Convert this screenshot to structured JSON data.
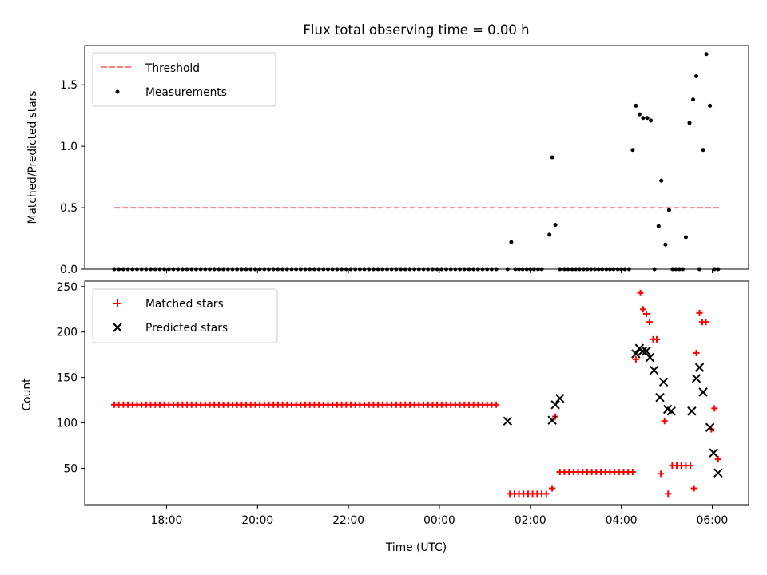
{
  "colors": {
    "threshold": "#ff7f7f",
    "measurement": "#000000",
    "matched": "#ff0000",
    "predicted": "#000000"
  },
  "chart_data": [
    {
      "type": "scatter",
      "title": "Flux total observing time = 0.00 h",
      "xlabel": "",
      "ylabel": "Matched/Predicted stars",
      "xlim": [
        16.2,
        30.8
      ],
      "ylim": [
        0,
        1.82
      ],
      "xticks": [
        18,
        20,
        22,
        24,
        26,
        28,
        30
      ],
      "xtick_labels": [],
      "yticks": [
        0,
        0.5,
        1.0,
        1.5
      ],
      "ytick_labels": [
        "0.0",
        "0.5",
        "1.0",
        "1.5"
      ],
      "legend_position": "upper-left",
      "series": [
        {
          "name": "Threshold",
          "kind": "dashed-line",
          "x": [
            16.85,
            30.15
          ],
          "y": [
            0.5,
            0.5
          ]
        },
        {
          "name": "Measurements",
          "kind": "dot",
          "zero_run": {
            "start": 16.85,
            "end": 25.27,
            "step": 0.1,
            "y": 0
          },
          "x": [
            25.5,
            25.58,
            25.67,
            25.75,
            25.83,
            25.92,
            26.0,
            26.08,
            26.17,
            26.25,
            26.42,
            26.48,
            26.55,
            26.65,
            26.75,
            26.83,
            26.92,
            27.0,
            27.08,
            27.17,
            27.25,
            27.33,
            27.42,
            27.5,
            27.58,
            27.67,
            27.75,
            27.83,
            27.92,
            28.0,
            28.08,
            28.17,
            28.25,
            28.32,
            28.4,
            28.48,
            28.57,
            28.65,
            28.73,
            28.82,
            28.88,
            28.97,
            29.05,
            29.13,
            29.2,
            29.28,
            29.35,
            29.42,
            29.5,
            29.58,
            29.65,
            29.72,
            29.8,
            29.87,
            29.95,
            30.05,
            30.13
          ],
          "y": [
            0,
            0.22,
            0,
            0,
            0,
            0,
            0,
            0,
            0,
            0,
            0.28,
            0.91,
            0.36,
            0,
            0,
            0,
            0,
            0,
            0,
            0,
            0,
            0,
            0,
            0,
            0,
            0,
            0,
            0,
            0,
            0,
            0,
            0,
            0.97,
            1.33,
            1.26,
            1.23,
            1.23,
            1.21,
            0,
            0.35,
            0.72,
            0.2,
            0.48,
            0,
            0,
            0,
            0,
            0.26,
            1.19,
            1.38,
            1.57,
            0,
            0.97,
            1.75,
            1.33,
            0,
            0
          ]
        }
      ]
    },
    {
      "type": "scatter",
      "title": "",
      "xlabel": "Time (UTC)",
      "ylabel": "Count",
      "xlim": [
        16.2,
        30.8
      ],
      "ylim": [
        10,
        256
      ],
      "xticks": [
        18,
        20,
        22,
        24,
        26,
        28,
        30
      ],
      "xtick_labels": [
        "18:00",
        "20:00",
        "22:00",
        "00:00",
        "02:00",
        "04:00",
        "06:00"
      ],
      "yticks": [
        50,
        100,
        150,
        200,
        250
      ],
      "ytick_labels": [
        "50",
        "100",
        "150",
        "200",
        "250"
      ],
      "legend_position": "upper-left",
      "series": [
        {
          "name": "Matched stars",
          "kind": "plus",
          "runs": [
            {
              "start": 16.85,
              "end": 25.27,
              "step": 0.1,
              "y": 120
            },
            {
              "start": 25.55,
              "end": 26.37,
              "step": 0.1,
              "y": 22
            },
            {
              "start": 26.65,
              "end": 28.25,
              "step": 0.1,
              "y": 46
            },
            {
              "start": 29.12,
              "end": 29.52,
              "step": 0.1,
              "y": 53
            }
          ],
          "x": [
            26.48,
            26.55,
            28.32,
            28.42,
            28.48,
            28.55,
            28.62,
            28.7,
            28.78,
            28.87,
            28.95,
            29.03,
            29.6,
            29.65,
            29.72,
            29.78,
            29.86,
            29.98,
            30.05,
            30.13
          ],
          "y": [
            28,
            107,
            170,
            243,
            225,
            220,
            211,
            192,
            192,
            44,
            102,
            22,
            28,
            177,
            221,
            211,
            211,
            93,
            116,
            60
          ]
        },
        {
          "name": "Predicted stars",
          "kind": "x",
          "x": [
            25.5,
            26.48,
            26.55,
            26.65,
            28.32,
            28.4,
            28.47,
            28.55,
            28.63,
            28.72,
            28.85,
            28.93,
            29.02,
            29.1,
            29.55,
            29.65,
            29.72,
            29.8,
            29.95,
            30.03,
            30.13
          ],
          "y": [
            102,
            103,
            120,
            127,
            176,
            182,
            179,
            179,
            172,
            158,
            128,
            145,
            115,
            113,
            113,
            149,
            161,
            134,
            95,
            67,
            45
          ]
        }
      ]
    }
  ]
}
